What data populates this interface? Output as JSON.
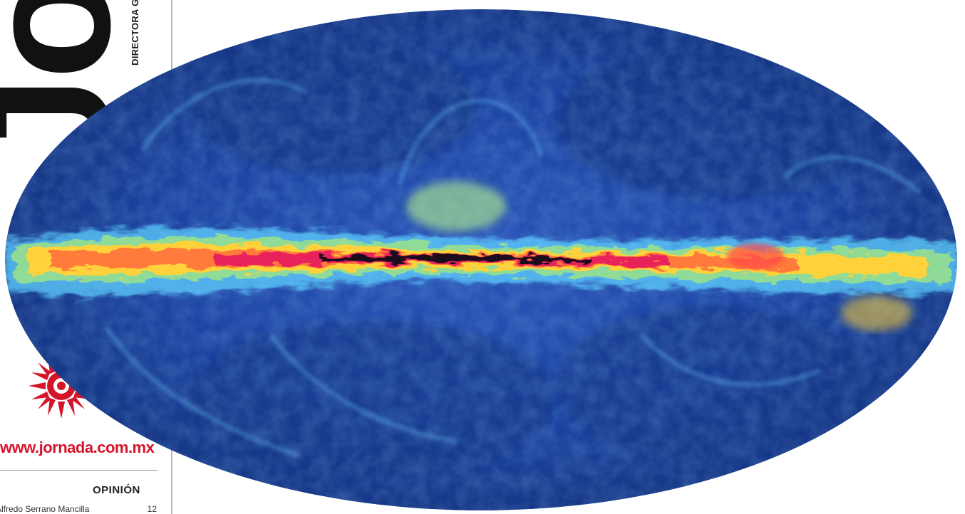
{
  "masthead": {
    "logo_text": "Jor",
    "director_line": "DIRECTORA G"
  },
  "sidebar": {
    "website": "www.jornada.com.mx",
    "section_heading": "OPINIÓN",
    "opinion_items": [
      {
        "author": "Alfredo Serrano Mancilla",
        "page": "12"
      }
    ]
  },
  "colors": {
    "brand_red": "#d5142a",
    "map_background": "#1e3f9c",
    "galactic_band_hot": "#ff3a3a",
    "galactic_band_warm": "#ffd23a"
  },
  "image": {
    "icon": "milky-way-all-sky-map-icon"
  }
}
